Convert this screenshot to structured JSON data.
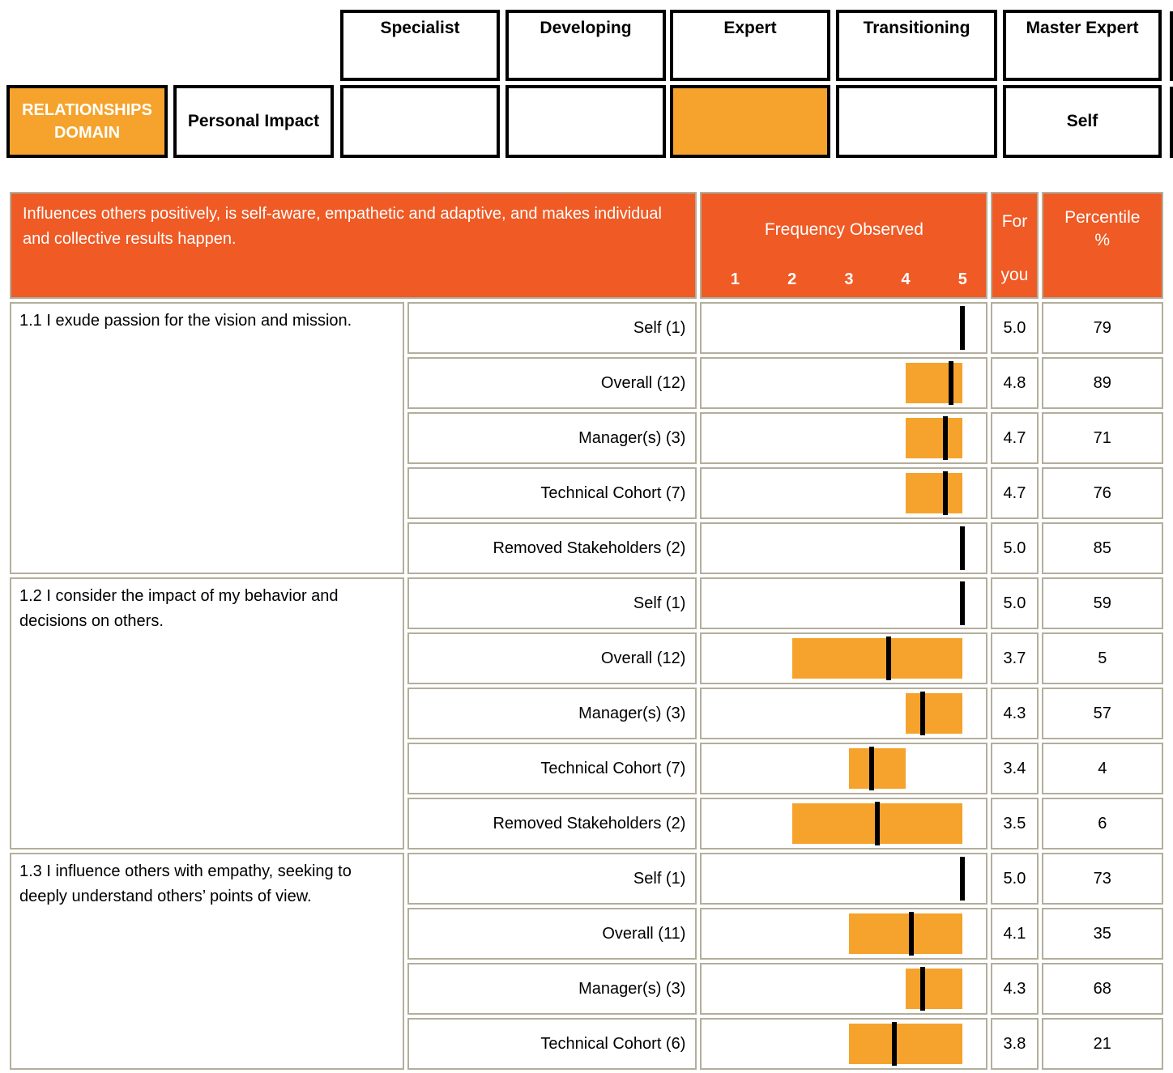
{
  "competency_matrix": {
    "levels": [
      "Specialist",
      "Developing",
      "Expert",
      "Transitioning",
      "Master Expert"
    ],
    "domain": "RELATIONSHIPS DOMAIN",
    "competency": "Personal Impact",
    "marked_level": "Expert",
    "self_marked_level": "Master Expert",
    "self_label": "Self",
    "highlight_color": "#F5A32C"
  },
  "table": {
    "description": "Influences others positively, is self-aware, empathetic and adaptive, and makes individual and collective results happen.",
    "frequency_header": "Frequency Observed",
    "scale_ticks": [
      "1",
      "2",
      "3",
      "4",
      "5"
    ],
    "for_label": "For",
    "you_label": "you",
    "percentile_header_line1": "Percentile",
    "percentile_header_line2": "%",
    "header_color": "#EF5A25",
    "bar_color": "#F5A32C",
    "grid_color": "#b3ae9c"
  },
  "chart_data": {
    "type": "table",
    "title": "Frequency Observed",
    "scale": {
      "min": 1,
      "max": 5,
      "ticks": [
        1,
        2,
        3,
        4,
        5
      ]
    },
    "legend": "orange bar = range of ratings (min to max), black tick = mean rating",
    "groups": [
      {
        "id": "1.1",
        "question": "1.1 I exude passion for the vision and mission.",
        "rows": [
          {
            "rater": "Self (1)",
            "bar_min": 5,
            "bar_max": 5,
            "mean": 5.0,
            "for_you": "5.0",
            "percentile": 79
          },
          {
            "rater": "Overall (12)",
            "bar_min": 4,
            "bar_max": 5,
            "mean": 4.8,
            "for_you": "4.8",
            "percentile": 89
          },
          {
            "rater": "Manager(s) (3)",
            "bar_min": 4,
            "bar_max": 5,
            "mean": 4.7,
            "for_you": "4.7",
            "percentile": 71
          },
          {
            "rater": "Technical Cohort (7)",
            "bar_min": 4,
            "bar_max": 5,
            "mean": 4.7,
            "for_you": "4.7",
            "percentile": 76
          },
          {
            "rater": "Removed Stakeholders (2)",
            "bar_min": 5,
            "bar_max": 5,
            "mean": 5.0,
            "for_you": "5.0",
            "percentile": 85
          }
        ]
      },
      {
        "id": "1.2",
        "question": "1.2 I consider the impact of my behavior and decisions on others.",
        "rows": [
          {
            "rater": "Self (1)",
            "bar_min": 5,
            "bar_max": 5,
            "mean": 5.0,
            "for_you": "5.0",
            "percentile": 59
          },
          {
            "rater": "Overall (12)",
            "bar_min": 2,
            "bar_max": 5,
            "mean": 3.7,
            "for_you": "3.7",
            "percentile": 5
          },
          {
            "rater": "Manager(s) (3)",
            "bar_min": 4,
            "bar_max": 5,
            "mean": 4.3,
            "for_you": "4.3",
            "percentile": 57
          },
          {
            "rater": "Technical Cohort (7)",
            "bar_min": 3,
            "bar_max": 4,
            "mean": 3.4,
            "for_you": "3.4",
            "percentile": 4
          },
          {
            "rater": "Removed Stakeholders (2)",
            "bar_min": 2,
            "bar_max": 5,
            "mean": 3.5,
            "for_you": "3.5",
            "percentile": 6
          }
        ]
      },
      {
        "id": "1.3",
        "question": "1.3 I influence others with empathy, seeking to deeply understand others’ points of view.",
        "rows": [
          {
            "rater": "Self (1)",
            "bar_min": 5,
            "bar_max": 5,
            "mean": 5.0,
            "for_you": "5.0",
            "percentile": 73
          },
          {
            "rater": "Overall (11)",
            "bar_min": 3,
            "bar_max": 5,
            "mean": 4.1,
            "for_you": "4.1",
            "percentile": 35
          },
          {
            "rater": "Manager(s) (3)",
            "bar_min": 4,
            "bar_max": 5,
            "mean": 4.3,
            "for_you": "4.3",
            "percentile": 68
          },
          {
            "rater": "Technical Cohort (6)",
            "bar_min": 3,
            "bar_max": 5,
            "mean": 3.8,
            "for_you": "3.8",
            "percentile": 21
          }
        ]
      }
    ]
  }
}
